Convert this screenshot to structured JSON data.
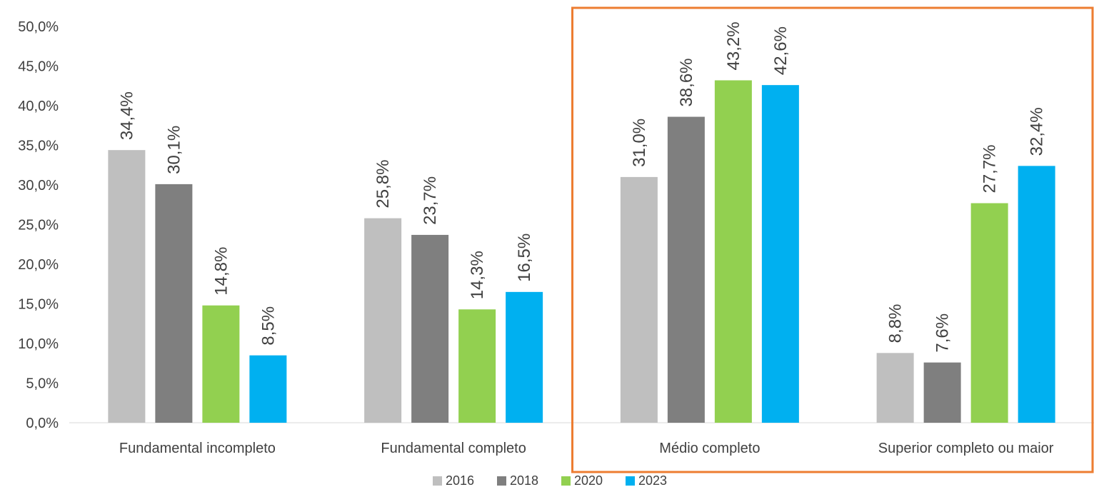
{
  "chart_data": {
    "type": "bar",
    "categories": [
      "Fundamental incompleto",
      "Fundamental completo",
      "Médio completo",
      "Superior completo ou maior"
    ],
    "series": [
      {
        "name": "2016",
        "color": "#BFBFBF",
        "values": [
          34.4,
          25.8,
          31.0,
          8.8
        ],
        "labels": [
          "34,4%",
          "25,8%",
          "31,0%",
          "8,8%"
        ]
      },
      {
        "name": "2018",
        "color": "#7F7F7F",
        "values": [
          30.1,
          23.7,
          38.6,
          7.6
        ],
        "labels": [
          "30,1%",
          "23,7%",
          "38,6%",
          "7,6%"
        ]
      },
      {
        "name": "2020",
        "color": "#92D050",
        "values": [
          14.8,
          14.3,
          43.2,
          27.7
        ],
        "labels": [
          "14,8%",
          "14,3%",
          "43,2%",
          "27,7%"
        ]
      },
      {
        "name": "2023",
        "color": "#00B0F0",
        "values": [
          8.5,
          16.5,
          42.6,
          32.4
        ],
        "labels": [
          "8,5%",
          "16,5%",
          "42,6%",
          "32,4%"
        ]
      }
    ],
    "y_ticks": [
      "0,0%",
      "5,0%",
      "10,0%",
      "15,0%",
      "20,0%",
      "25,0%",
      "30,0%",
      "35,0%",
      "40,0%",
      "45,0%",
      "50,0%"
    ],
    "ylim": [
      0,
      50
    ],
    "title": "",
    "xlabel": "",
    "ylabel": "",
    "grid": false,
    "legend_position": "bottom",
    "highlight": {
      "categories": [
        "Médio completo"
      ],
      "color": "#ED7D31"
    }
  }
}
